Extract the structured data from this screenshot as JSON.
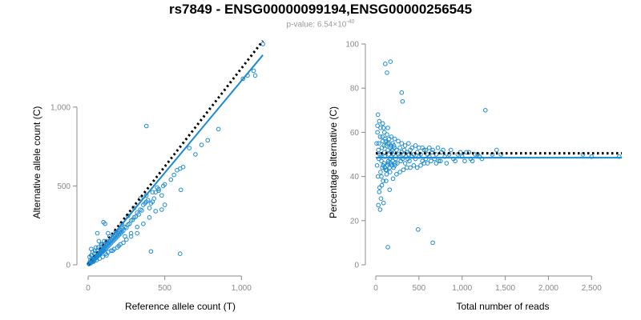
{
  "title": "rs7849 - ENSG00000099194,ENSG00000256545",
  "subtitle": {
    "prefix": "p-value: 6.54×10",
    "exponent": "-40"
  },
  "colors": {
    "points": "#1a8ad4",
    "fit_line": "#1a8ad4",
    "expected_line": "#000000",
    "axis": "#888888"
  },
  "chart_data": [
    {
      "type": "scatter",
      "xlabel": "Reference allele count (T)",
      "ylabel": "Alternative allele count (C)",
      "xlim": [
        0,
        1150
      ],
      "ylim": [
        0,
        1400
      ],
      "xticks": [
        0,
        500,
        1000
      ],
      "xtick_labels": [
        "0",
        "500",
        "1,000"
      ],
      "yticks": [
        0,
        500,
        1000
      ],
      "ytick_labels": [
        "0",
        "500",
        "1,000"
      ],
      "grid": false,
      "expected_line": {
        "style": "dotted",
        "points": [
          [
            0,
            0
          ],
          [
            1140,
            1420
          ]
        ]
      },
      "fit_line": {
        "style": "solid",
        "points": [
          [
            0,
            0
          ],
          [
            1140,
            1330
          ]
        ]
      },
      "points": [
        [
          5,
          5
        ],
        [
          8,
          12
        ],
        [
          10,
          8
        ],
        [
          12,
          15
        ],
        [
          15,
          10
        ],
        [
          18,
          20
        ],
        [
          20,
          14
        ],
        [
          22,
          25
        ],
        [
          25,
          18
        ],
        [
          28,
          30
        ],
        [
          30,
          22
        ],
        [
          32,
          35
        ],
        [
          35,
          28
        ],
        [
          38,
          40
        ],
        [
          40,
          32
        ],
        [
          42,
          45
        ],
        [
          45,
          38
        ],
        [
          48,
          50
        ],
        [
          50,
          42
        ],
        [
          52,
          55
        ],
        [
          55,
          48
        ],
        [
          58,
          60
        ],
        [
          60,
          52
        ],
        [
          62,
          65
        ],
        [
          65,
          58
        ],
        [
          68,
          70
        ],
        [
          70,
          62
        ],
        [
          72,
          75
        ],
        [
          75,
          68
        ],
        [
          78,
          80
        ],
        [
          80,
          72
        ],
        [
          82,
          85
        ],
        [
          85,
          78
        ],
        [
          88,
          90
        ],
        [
          90,
          82
        ],
        [
          92,
          95
        ],
        [
          95,
          88
        ],
        [
          98,
          100
        ],
        [
          100,
          92
        ],
        [
          105,
          110
        ],
        [
          110,
          100
        ],
        [
          115,
          120
        ],
        [
          120,
          108
        ],
        [
          125,
          130
        ],
        [
          130,
          118
        ],
        [
          135,
          140
        ],
        [
          140,
          128
        ],
        [
          145,
          150
        ],
        [
          150,
          138
        ],
        [
          155,
          160
        ],
        [
          160,
          148
        ],
        [
          165,
          170
        ],
        [
          170,
          158
        ],
        [
          175,
          180
        ],
        [
          180,
          168
        ],
        [
          185,
          190
        ],
        [
          190,
          178
        ],
        [
          195,
          200
        ],
        [
          200,
          188
        ],
        [
          205,
          210
        ],
        [
          210,
          198
        ],
        [
          215,
          220
        ],
        [
          220,
          208
        ],
        [
          225,
          230
        ],
        [
          230,
          218
        ],
        [
          240,
          240
        ],
        [
          250,
          235
        ],
        [
          260,
          255
        ],
        [
          270,
          260
        ],
        [
          280,
          280
        ],
        [
          290,
          285
        ],
        [
          300,
          300
        ],
        [
          310,
          305
        ],
        [
          320,
          330
        ],
        [
          330,
          320
        ],
        [
          340,
          350
        ],
        [
          350,
          345
        ],
        [
          360,
          380
        ],
        [
          370,
          390
        ],
        [
          380,
          400
        ],
        [
          390,
          410
        ],
        [
          400,
          360
        ],
        [
          410,
          390
        ],
        [
          420,
          400
        ],
        [
          430,
          420
        ],
        [
          440,
          460
        ],
        [
          450,
          490
        ],
        [
          460,
          470
        ],
        [
          480,
          440
        ],
        [
          490,
          500
        ],
        [
          500,
          510
        ],
        [
          540,
          540
        ],
        [
          560,
          570
        ],
        [
          580,
          600
        ],
        [
          600,
          610
        ],
        [
          620,
          620
        ],
        [
          660,
          740
        ],
        [
          700,
          700
        ],
        [
          740,
          760
        ],
        [
          780,
          790
        ],
        [
          850,
          860
        ],
        [
          1010,
          1180
        ],
        [
          1040,
          1200
        ],
        [
          1080,
          1230
        ],
        [
          1140,
          1400
        ],
        [
          1090,
          1200
        ],
        [
          380,
          880
        ],
        [
          410,
          85
        ],
        [
          600,
          70
        ],
        [
          605,
          475
        ],
        [
          100,
          270
        ],
        [
          110,
          260
        ],
        [
          130,
          200
        ],
        [
          60,
          200
        ],
        [
          20,
          100
        ],
        [
          10,
          50
        ],
        [
          15,
          30
        ],
        [
          25,
          60
        ],
        [
          35,
          20
        ],
        [
          45,
          90
        ],
        [
          55,
          30
        ],
        [
          65,
          110
        ],
        [
          75,
          40
        ],
        [
          85,
          130
        ],
        [
          95,
          50
        ],
        [
          105,
          150
        ],
        [
          120,
          60
        ],
        [
          140,
          180
        ],
        [
          160,
          90
        ],
        [
          180,
          210
        ],
        [
          200,
          120
        ],
        [
          220,
          260
        ],
        [
          240,
          180
        ],
        [
          260,
          310
        ],
        [
          280,
          200
        ],
        [
          300,
          360
        ],
        [
          320,
          240
        ],
        [
          340,
          420
        ],
        [
          360,
          260
        ],
        [
          380,
          440
        ],
        [
          400,
          300
        ],
        [
          420,
          460
        ],
        [
          440,
          340
        ],
        [
          460,
          480
        ],
        [
          480,
          350
        ],
        [
          500,
          380
        ],
        [
          280,
          180
        ],
        [
          320,
          200
        ],
        [
          250,
          160
        ],
        [
          230,
          140
        ],
        [
          210,
          130
        ],
        [
          190,
          110
        ],
        [
          170,
          100
        ],
        [
          150,
          90
        ],
        [
          130,
          80
        ],
        [
          115,
          70
        ],
        [
          90,
          130
        ],
        [
          70,
          150
        ],
        [
          50,
          110
        ],
        [
          30,
          80
        ],
        [
          20,
          60
        ],
        [
          40,
          70
        ],
        [
          60,
          90
        ],
        [
          80,
          100
        ],
        [
          100,
          130
        ],
        [
          120,
          150
        ]
      ]
    },
    {
      "type": "scatter",
      "xlabel": "Total number of reads",
      "ylabel": "Percentage alternative (C)",
      "xlim": [
        0,
        2850
      ],
      "ylim": [
        0,
        100
      ],
      "xticks": [
        0,
        500,
        1000,
        1500,
        2000,
        2500
      ],
      "xtick_labels": [
        "0",
        "500",
        "1,000",
        "1,500",
        "2,000",
        "2,500"
      ],
      "yticks": [
        0,
        20,
        40,
        60,
        80,
        100
      ],
      "ytick_labels": [
        "0",
        "20",
        "40",
        "60",
        "80",
        "100"
      ],
      "grid": false,
      "expected_line": {
        "style": "dotted",
        "points": [
          [
            0,
            50.5
          ],
          [
            2850,
            50.5
          ]
        ]
      },
      "fit_line": {
        "style": "solid",
        "points": [
          [
            0,
            48.5
          ],
          [
            2850,
            48.5
          ]
        ]
      },
      "points": [
        [
          10,
          55
        ],
        [
          15,
          45
        ],
        [
          20,
          60
        ],
        [
          25,
          40
        ],
        [
          30,
          52
        ],
        [
          35,
          48
        ],
        [
          40,
          65
        ],
        [
          45,
          35
        ],
        [
          50,
          58
        ],
        [
          55,
          42
        ],
        [
          60,
          50
        ],
        [
          65,
          47
        ],
        [
          70,
          53
        ],
        [
          75,
          44
        ],
        [
          80,
          56
        ],
        [
          85,
          38
        ],
        [
          90,
          62
        ],
        [
          95,
          46
        ],
        [
          100,
          51
        ],
        [
          105,
          49
        ],
        [
          110,
          57
        ],
        [
          115,
          43
        ],
        [
          120,
          54
        ],
        [
          125,
          41
        ],
        [
          130,
          59
        ],
        [
          135,
          45
        ],
        [
          140,
          52
        ],
        [
          145,
          47
        ],
        [
          150,
          50
        ],
        [
          155,
          55
        ],
        [
          160,
          44
        ],
        [
          165,
          48
        ],
        [
          170,
          53
        ],
        [
          175,
          46
        ],
        [
          180,
          51
        ],
        [
          185,
          49
        ],
        [
          190,
          52
        ],
        [
          195,
          47
        ],
        [
          200,
          50
        ],
        [
          210,
          54
        ],
        [
          220,
          45
        ],
        [
          230,
          48
        ],
        [
          240,
          52
        ],
        [
          250,
          46
        ],
        [
          260,
          50
        ],
        [
          270,
          49
        ],
        [
          280,
          53
        ],
        [
          290,
          47
        ],
        [
          300,
          51
        ],
        [
          310,
          48
        ],
        [
          320,
          50
        ],
        [
          330,
          52
        ],
        [
          340,
          46
        ],
        [
          350,
          49
        ],
        [
          360,
          51
        ],
        [
          370,
          48
        ],
        [
          380,
          50
        ],
        [
          390,
          47
        ],
        [
          400,
          52
        ],
        [
          420,
          49
        ],
        [
          440,
          50
        ],
        [
          460,
          48
        ],
        [
          480,
          51
        ],
        [
          500,
          49
        ],
        [
          520,
          50
        ],
        [
          540,
          47
        ],
        [
          560,
          52
        ],
        [
          580,
          48
        ],
        [
          600,
          50
        ],
        [
          620,
          49
        ],
        [
          650,
          51
        ],
        [
          680,
          48
        ],
        [
          700,
          50
        ],
        [
          730,
          47
        ],
        [
          760,
          51
        ],
        [
          800,
          49
        ],
        [
          850,
          50
        ],
        [
          900,
          48
        ],
        [
          950,
          50
        ],
        [
          1000,
          49
        ],
        [
          1050,
          51
        ],
        [
          1100,
          48
        ],
        [
          1150,
          50
        ],
        [
          1200,
          49
        ],
        [
          1270,
          70
        ],
        [
          1400,
          52
        ],
        [
          1450,
          50
        ],
        [
          2400,
          50
        ],
        [
          2500,
          49
        ],
        [
          2820,
          49
        ],
        [
          110,
          91
        ],
        [
          130,
          87
        ],
        [
          170,
          92
        ],
        [
          300,
          78
        ],
        [
          310,
          74
        ],
        [
          30,
          27
        ],
        [
          50,
          25
        ],
        [
          140,
          8
        ],
        [
          490,
          16
        ],
        [
          660,
          10
        ],
        [
          20,
          63
        ],
        [
          25,
          68
        ],
        [
          40,
          33
        ],
        [
          60,
          30
        ],
        [
          70,
          36
        ],
        [
          80,
          64
        ],
        [
          90,
          28
        ],
        [
          100,
          60
        ],
        [
          120,
          38
        ],
        [
          140,
          62
        ],
        [
          160,
          34
        ],
        [
          180,
          58
        ],
        [
          200,
          39
        ],
        [
          220,
          57
        ],
        [
          240,
          41
        ],
        [
          260,
          56
        ],
        [
          280,
          42
        ],
        [
          300,
          55
        ],
        [
          320,
          43
        ],
        [
          340,
          54
        ],
        [
          360,
          44
        ],
        [
          380,
          55
        ],
        [
          400,
          44
        ],
        [
          420,
          53
        ],
        [
          440,
          45
        ],
        [
          460,
          54
        ],
        [
          480,
          44
        ],
        [
          500,
          53
        ],
        [
          520,
          45
        ],
        [
          540,
          53
        ],
        [
          560,
          46
        ],
        [
          580,
          52
        ],
        [
          600,
          46
        ],
        [
          620,
          53
        ],
        [
          640,
          47
        ],
        [
          660,
          52
        ],
        [
          700,
          46
        ],
        [
          720,
          53
        ],
        [
          750,
          47
        ],
        [
          780,
          52
        ],
        [
          820,
          46
        ],
        [
          870,
          52
        ],
        [
          920,
          47
        ],
        [
          980,
          51
        ],
        [
          1030,
          47
        ],
        [
          1080,
          51
        ],
        [
          1120,
          47
        ],
        [
          1180,
          50
        ],
        [
          1230,
          48
        ],
        [
          1350,
          50
        ],
        [
          35,
          55
        ],
        [
          45,
          50
        ],
        [
          55,
          62
        ],
        [
          65,
          40
        ],
        [
          75,
          58
        ],
        [
          85,
          45
        ],
        [
          95,
          54
        ],
        [
          105,
          44
        ],
        [
          115,
          56
        ],
        [
          125,
          43
        ],
        [
          135,
          55
        ],
        [
          145,
          46
        ],
        [
          155,
          57
        ],
        [
          165,
          42
        ],
        [
          175,
          54
        ],
        [
          185,
          45
        ],
        [
          195,
          55
        ],
        [
          205,
          44
        ],
        [
          215,
          53
        ],
        [
          225,
          46
        ]
      ]
    }
  ]
}
